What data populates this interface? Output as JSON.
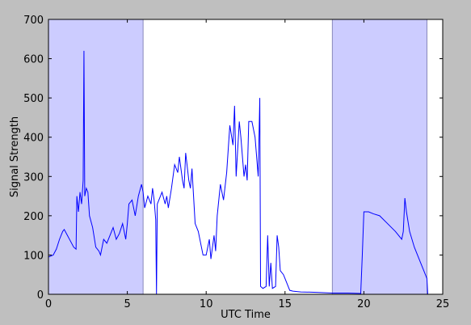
{
  "chart_data": {
    "type": "line",
    "x_label": "UTC Time",
    "y_label": "Signal Strength",
    "x": [
      0,
      0.3,
      0.5,
      0.7,
      0.9,
      1.0,
      1.2,
      1.4,
      1.6,
      1.75,
      1.8,
      1.9,
      2.0,
      2.1,
      2.2,
      2.25,
      2.3,
      2.4,
      2.5,
      2.6,
      2.8,
      3.0,
      3.2,
      3.3,
      3.5,
      3.7,
      3.9,
      4.1,
      4.3,
      4.5,
      4.7,
      4.9,
      5.0,
      5.1,
      5.3,
      5.5,
      5.7,
      5.9,
      6.0,
      6.1,
      6.3,
      6.5,
      6.6,
      6.7,
      6.8,
      6.85,
      6.9,
      7.0,
      7.2,
      7.4,
      7.5,
      7.6,
      7.8,
      8.0,
      8.2,
      8.3,
      8.5,
      8.6,
      8.7,
      8.9,
      9.0,
      9.1,
      9.2,
      9.3,
      9.5,
      9.7,
      9.8,
      10.0,
      10.2,
      10.3,
      10.5,
      10.6,
      10.7,
      10.8,
      10.9,
      11.1,
      11.3,
      11.5,
      11.7,
      11.8,
      11.9,
      12.1,
      12.2,
      12.4,
      12.5,
      12.6,
      12.7,
      12.9,
      13.1,
      13.3,
      13.4,
      13.45,
      13.6,
      13.8,
      13.9,
      14.0,
      14.1,
      14.2,
      14.4,
      14.5,
      14.6,
      14.7,
      14.9,
      15.0,
      15.3,
      15.5,
      16,
      17,
      18,
      19,
      19.8,
      19.9,
      20.0,
      20.3,
      20.6,
      21.0,
      21.5,
      22.0,
      22.4,
      22.5,
      22.6,
      22.7,
      22.9,
      23.2,
      23.5,
      23.8,
      24.0,
      24.05
    ],
    "values": [
      95,
      100,
      115,
      140,
      160,
      165,
      150,
      135,
      120,
      115,
      250,
      210,
      260,
      230,
      290,
      620,
      250,
      270,
      260,
      200,
      170,
      120,
      110,
      100,
      140,
      130,
      150,
      170,
      140,
      155,
      180,
      140,
      180,
      230,
      240,
      200,
      250,
      280,
      260,
      220,
      250,
      230,
      270,
      240,
      190,
      0,
      230,
      240,
      260,
      230,
      250,
      220,
      270,
      330,
      310,
      350,
      290,
      270,
      360,
      290,
      270,
      320,
      250,
      180,
      160,
      120,
      100,
      100,
      140,
      90,
      150,
      110,
      200,
      240,
      280,
      240,
      310,
      430,
      380,
      480,
      300,
      440,
      400,
      300,
      330,
      290,
      440,
      440,
      400,
      300,
      500,
      20,
      15,
      20,
      150,
      20,
      80,
      15,
      20,
      150,
      120,
      60,
      50,
      40,
      10,
      8,
      6,
      5,
      3,
      3,
      2,
      100,
      210,
      210,
      205,
      200,
      180,
      160,
      140,
      160,
      245,
      210,
      160,
      120,
      90,
      60,
      40,
      0
    ],
    "color": "#0000ff",
    "shaded_spans": [
      [
        0,
        6
      ],
      [
        18,
        24
      ]
    ],
    "span_color": "#ccccff",
    "xlim": [
      0,
      25
    ],
    "xticks": [
      0,
      5,
      10,
      15,
      20,
      25
    ],
    "ylim": [
      0,
      700
    ],
    "yticks": [
      0,
      100,
      200,
      300,
      400,
      500,
      600,
      700
    ]
  }
}
